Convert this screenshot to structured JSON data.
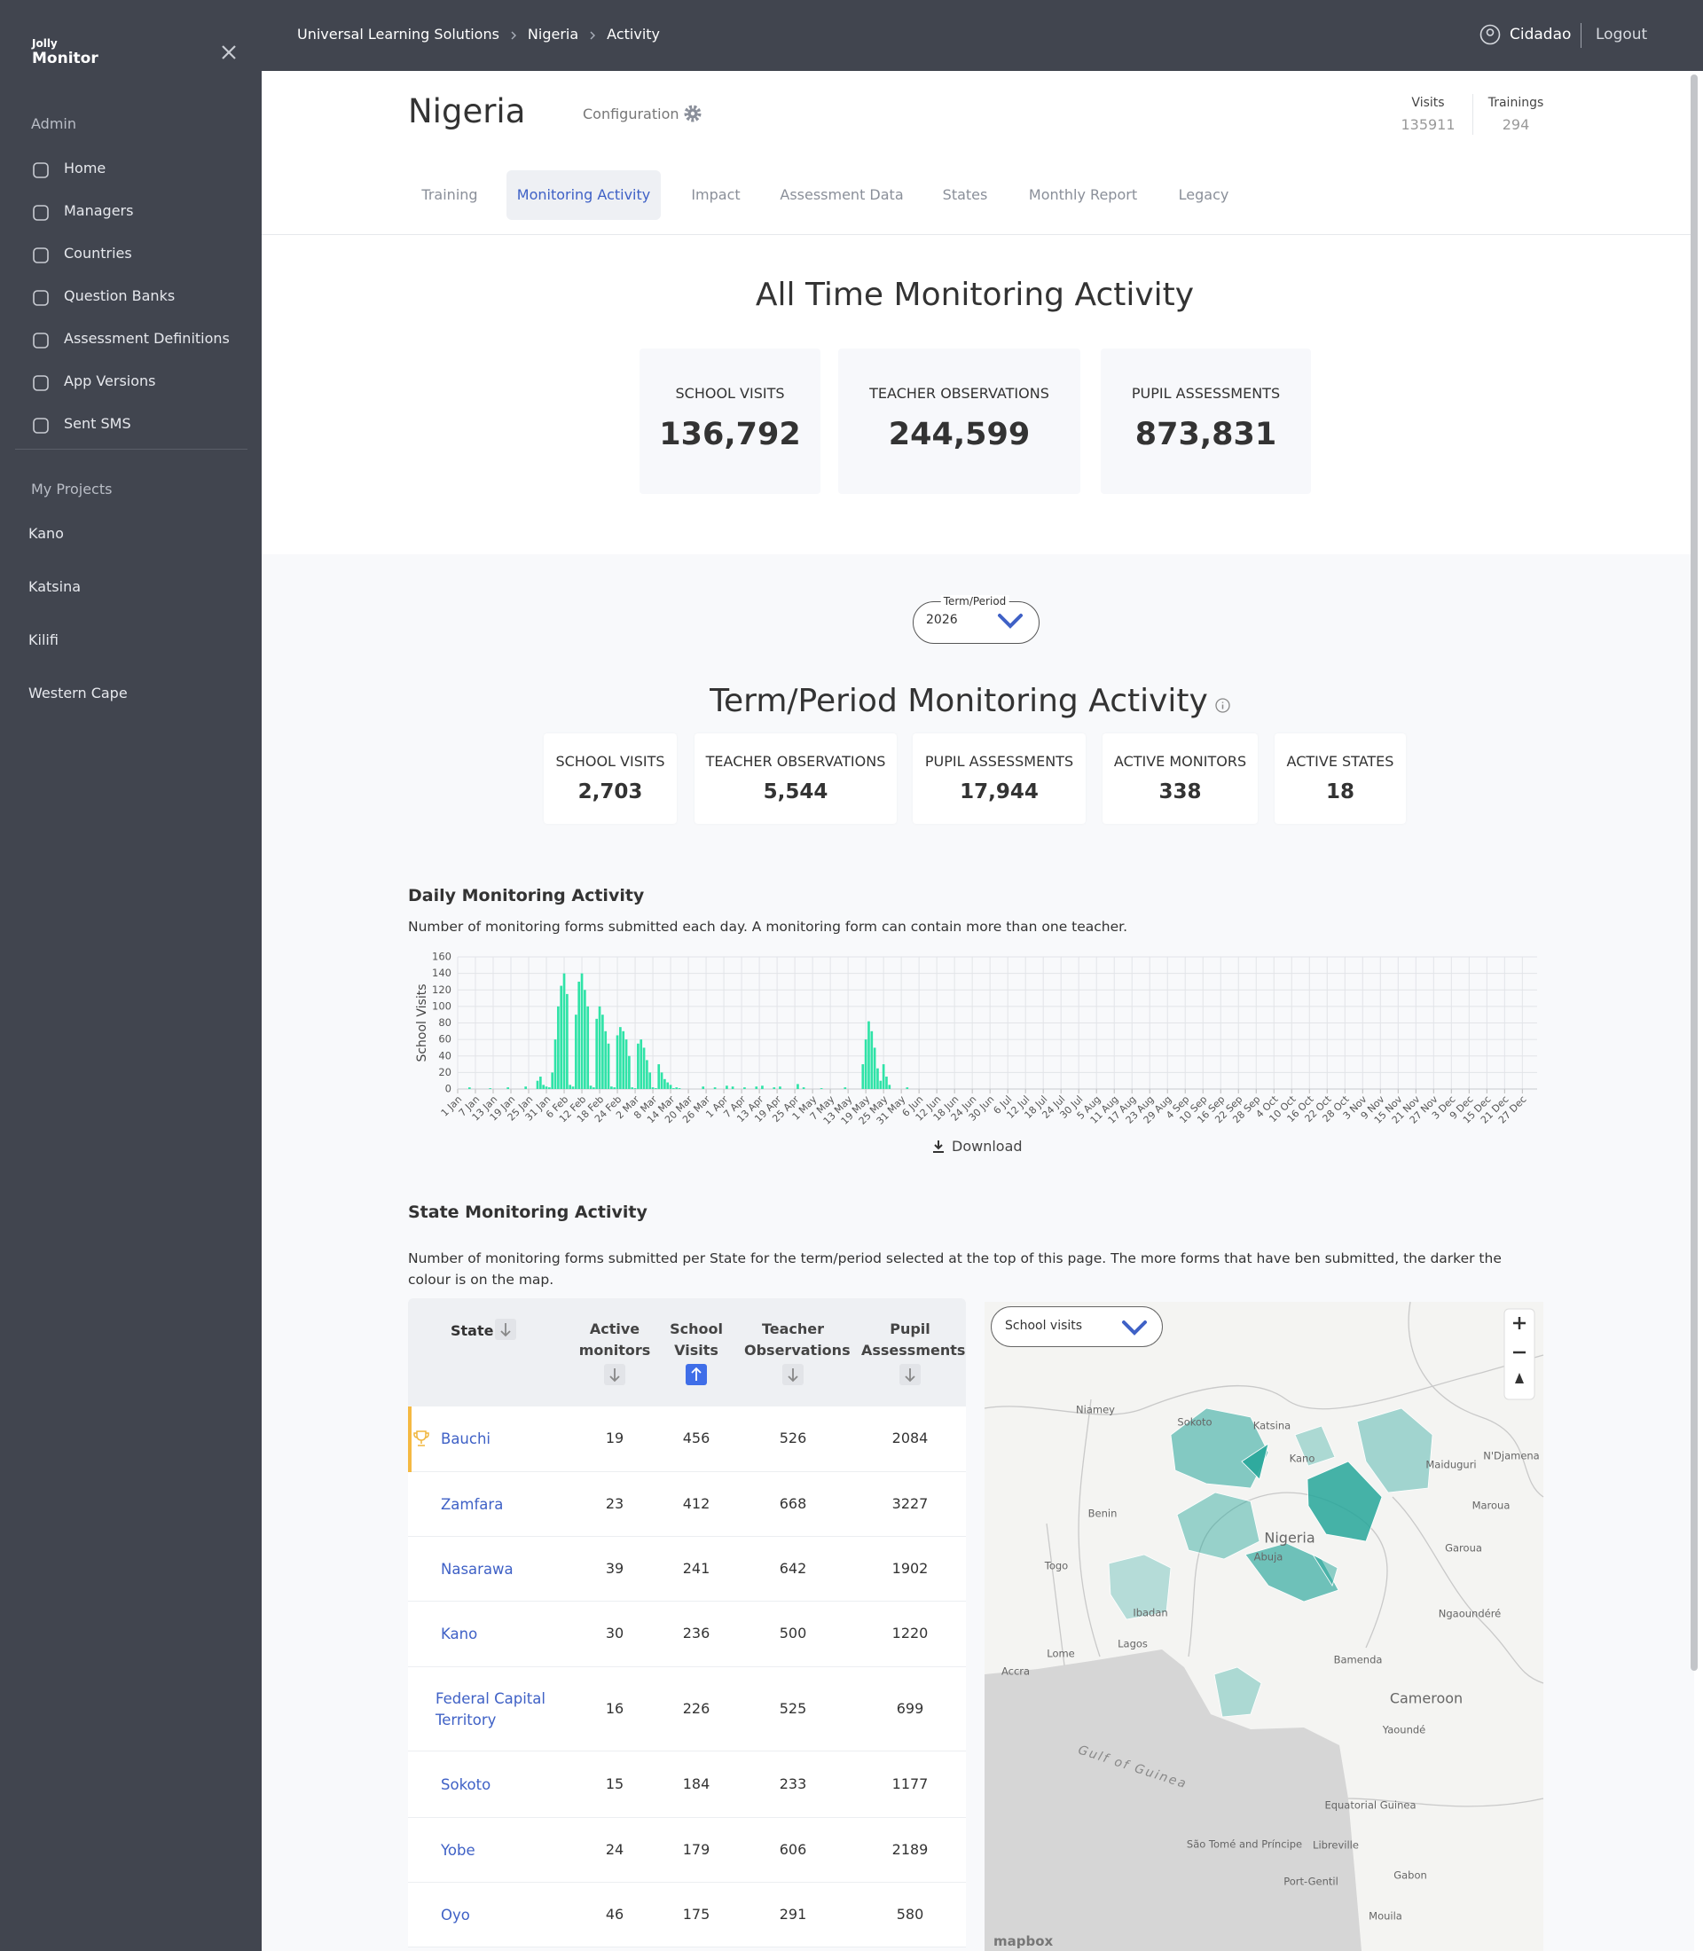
{
  "sidebar": {
    "brand_top": "Jolly",
    "brand": "Monitor",
    "section_admin": "Admin",
    "admin_items": [
      "Home",
      "Managers",
      "Countries",
      "Question Banks",
      "Assessment Definitions",
      "App Versions",
      "Sent SMS"
    ],
    "section_projects": "My Projects",
    "projects": [
      "Kano",
      "Katsina",
      "Kilifi",
      "Western Cape"
    ]
  },
  "topbar": {
    "breadcrumbs": [
      "Universal Learning Solutions",
      "Nigeria",
      "Activity"
    ],
    "user": "Cidadao",
    "logout": "Logout"
  },
  "header": {
    "title": "Nigeria",
    "configuration": "Configuration",
    "stats": [
      {
        "label": "Visits",
        "value": 135911
      },
      {
        "label": "Trainings",
        "value": 294
      }
    ],
    "tabs": [
      "Training",
      "Monitoring Activity",
      "Impact",
      "Assessment Data",
      "States",
      "Monthly Report",
      "Legacy"
    ],
    "active_tab": 1
  },
  "all_time": {
    "title": "All Time Monitoring Activity",
    "cards": [
      {
        "label": "SCHOOL VISITS",
        "value": "136,792"
      },
      {
        "label": "TEACHER OBSERVATIONS",
        "value": "244,599"
      },
      {
        "label": "PUPIL ASSESSMENTS",
        "value": "873,831"
      }
    ]
  },
  "term": {
    "selector_label": "Term/Period",
    "selector_value": "2026",
    "title": "Term/Period Monitoring Activity",
    "cards": [
      {
        "label": "SCHOOL VISITS",
        "value": "2,703"
      },
      {
        "label": "TEACHER OBSERVATIONS",
        "value": "5,544"
      },
      {
        "label": "PUPIL ASSESSMENTS",
        "value": "17,944"
      },
      {
        "label": "ACTIVE MONITORS",
        "value": "338"
      },
      {
        "label": "ACTIVE STATES",
        "value": "18"
      }
    ]
  },
  "chart_data": {
    "type": "bar",
    "title": "Daily Monitoring Activity",
    "subtitle": "Number of monitoring forms submitted each day. A monitoring form can contain more than one teacher.",
    "y_label": "School Visits",
    "color": "#2fe3a7",
    "grid": true,
    "x": [
      5,
      12,
      18,
      24,
      28,
      29,
      30,
      31,
      32,
      33,
      34,
      35,
      36,
      37,
      38,
      39,
      40,
      41,
      42,
      43,
      44,
      45,
      46,
      47,
      48,
      49,
      50,
      51,
      52,
      53,
      54,
      55,
      56,
      57,
      58,
      59,
      60,
      61,
      62,
      63,
      64,
      65,
      66,
      67,
      68,
      69,
      70,
      71,
      72,
      73,
      74,
      75,
      76,
      84,
      88,
      92,
      94,
      98,
      102,
      104,
      108,
      110,
      116,
      118,
      124,
      132,
      138,
      139,
      140,
      141,
      142,
      143,
      144,
      145,
      146,
      147,
      153
    ],
    "values": [
      2,
      1,
      2,
      3,
      10,
      15,
      5,
      3,
      2,
      20,
      60,
      100,
      125,
      140,
      115,
      5,
      3,
      90,
      130,
      140,
      120,
      100,
      4,
      2,
      85,
      100,
      90,
      70,
      55,
      3,
      2,
      65,
      75,
      70,
      60,
      40,
      2,
      1,
      55,
      60,
      50,
      35,
      20,
      2,
      1,
      30,
      20,
      12,
      8,
      5,
      1,
      2,
      1,
      3,
      2,
      4,
      3,
      2,
      3,
      4,
      2,
      3,
      6,
      2,
      1,
      2,
      30,
      60,
      82,
      70,
      50,
      25,
      10,
      30,
      15,
      5,
      2
    ],
    "xlim": [
      1,
      366
    ],
    "xticks": [
      {
        "value": 1,
        "label": "1 Jan"
      },
      {
        "value": 7,
        "label": "7 Jan"
      },
      {
        "value": 13,
        "label": "13 Jan"
      },
      {
        "value": 19,
        "label": "19 Jan"
      },
      {
        "value": 25,
        "label": "25 Jan"
      },
      {
        "value": 31,
        "label": "31 Jan"
      },
      {
        "value": 37,
        "label": "6 Feb"
      },
      {
        "value": 43,
        "label": "12 Feb"
      },
      {
        "value": 49,
        "label": "18 Feb"
      },
      {
        "value": 55,
        "label": "24 Feb"
      },
      {
        "value": 61,
        "label": "2 Mar"
      },
      {
        "value": 67,
        "label": "8 Mar"
      },
      {
        "value": 73,
        "label": "14 Mar"
      },
      {
        "value": 79,
        "label": "20 Mar"
      },
      {
        "value": 85,
        "label": "26 Mar"
      },
      {
        "value": 91,
        "label": "1 Apr"
      },
      {
        "value": 97,
        "label": "7 Apr"
      },
      {
        "value": 103,
        "label": "13 Apr"
      },
      {
        "value": 109,
        "label": "19 Apr"
      },
      {
        "value": 115,
        "label": "25 Apr"
      },
      {
        "value": 121,
        "label": "1 May"
      },
      {
        "value": 127,
        "label": "7 May"
      },
      {
        "value": 133,
        "label": "13 May"
      },
      {
        "value": 139,
        "label": "19 May"
      },
      {
        "value": 145,
        "label": "25 May"
      },
      {
        "value": 151,
        "label": "31 May"
      },
      {
        "value": 157,
        "label": "6 Jun"
      },
      {
        "value": 163,
        "label": "12 Jun"
      },
      {
        "value": 169,
        "label": "18 Jun"
      },
      {
        "value": 175,
        "label": "24 Jun"
      },
      {
        "value": 181,
        "label": "30 Jun"
      },
      {
        "value": 187,
        "label": "6 Jul"
      },
      {
        "value": 193,
        "label": "12 Jul"
      },
      {
        "value": 199,
        "label": "18 Jul"
      },
      {
        "value": 205,
        "label": "24 Jul"
      },
      {
        "value": 211,
        "label": "30 Jul"
      },
      {
        "value": 217,
        "label": "5 Aug"
      },
      {
        "value": 223,
        "label": "11 Aug"
      },
      {
        "value": 229,
        "label": "17 Aug"
      },
      {
        "value": 235,
        "label": "23 Aug"
      },
      {
        "value": 241,
        "label": "29 Aug"
      },
      {
        "value": 247,
        "label": "4 Sep"
      },
      {
        "value": 253,
        "label": "10 Sep"
      },
      {
        "value": 259,
        "label": "16 Sep"
      },
      {
        "value": 265,
        "label": "22 Sep"
      },
      {
        "value": 271,
        "label": "28 Sep"
      },
      {
        "value": 277,
        "label": "4 Oct"
      },
      {
        "value": 283,
        "label": "10 Oct"
      },
      {
        "value": 289,
        "label": "16 Oct"
      },
      {
        "value": 295,
        "label": "22 Oct"
      },
      {
        "value": 301,
        "label": "28 Oct"
      },
      {
        "value": 307,
        "label": "3 Nov"
      },
      {
        "value": 313,
        "label": "9 Nov"
      },
      {
        "value": 319,
        "label": "15 Nov"
      },
      {
        "value": 325,
        "label": "21 Nov"
      },
      {
        "value": 331,
        "label": "27 Nov"
      },
      {
        "value": 337,
        "label": "3 Dec"
      },
      {
        "value": 343,
        "label": "9 Dec"
      },
      {
        "value": 349,
        "label": "15 Dec"
      },
      {
        "value": 355,
        "label": "21 Dec"
      },
      {
        "value": 361,
        "label": "27 Dec"
      }
    ],
    "ylim": [
      0,
      160
    ],
    "yticks": [
      0,
      20,
      40,
      60,
      80,
      100,
      120,
      140,
      160
    ]
  },
  "chart_footer": {
    "download": "Download"
  },
  "state_activity": {
    "title": "State Monitoring Activity",
    "description": "Number of monitoring forms submitted per State for the term/period selected at the top of this page. The more forms that have ben submitted, the darker the colour is on the map.",
    "table": {
      "headers": [
        "State",
        "Active monitors",
        "School Visits",
        "Teacher Observations",
        "Pupil Assessments"
      ],
      "sorted_column": 2,
      "highlight_row": 0,
      "rows": [
        [
          "Bauchi",
          19,
          456,
          526,
          2084
        ],
        [
          "Zamfara",
          23,
          412,
          668,
          3227
        ],
        [
          "Nasarawa",
          39,
          241,
          642,
          1902
        ],
        [
          "Kano",
          30,
          236,
          500,
          1220
        ],
        [
          "Federal Capital Territory",
          16,
          226,
          525,
          699
        ],
        [
          "Sokoto",
          15,
          184,
          233,
          1177
        ],
        [
          "Yobe",
          24,
          179,
          606,
          2189
        ],
        [
          "Oyo",
          46,
          175,
          291,
          580
        ]
      ]
    }
  },
  "map": {
    "metric": "School visits",
    "labels": [
      "Niamey",
      "Sokoto",
      "Katsina",
      "Kano",
      "Maiduguri",
      "N'Djamena",
      "Benin",
      "Nigeria",
      "Abuja",
      "Maroua",
      "Garoua",
      "Togo",
      "Ibadan",
      "Ngaoundéré",
      "Lagos",
      "Lome",
      "Bamenda",
      "Accra",
      "Cameroon",
      "Yaoundé",
      "Gulf of Guinea",
      "Equatorial Guinea",
      "São Tomé and Príncipe",
      "Libreville",
      "Gabon",
      "Port-Gentil",
      "Mouila"
    ],
    "attribution": "mapbox"
  }
}
